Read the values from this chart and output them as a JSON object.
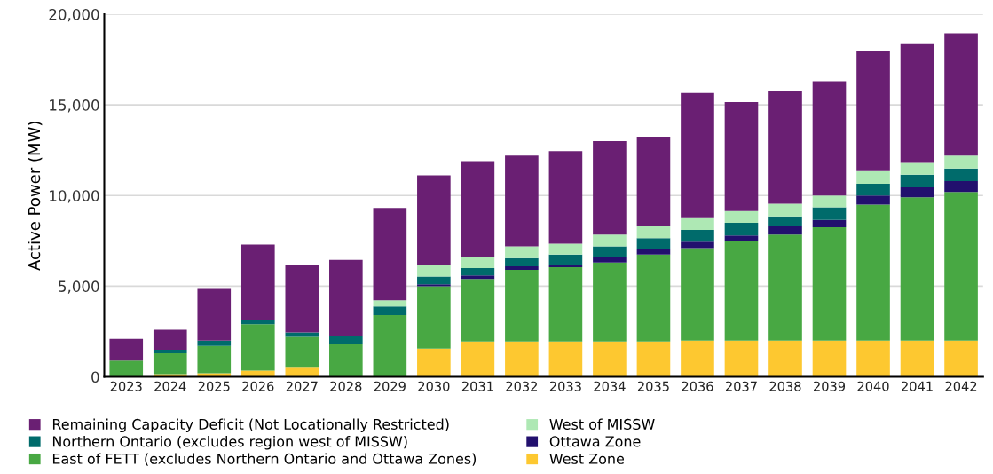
{
  "chart_data": {
    "type": "bar",
    "stacked": true,
    "ylabel": "Active Power (MW)",
    "categories": [
      "2023",
      "2024",
      "2025",
      "2026",
      "2027",
      "2028",
      "2029",
      "2030",
      "2031",
      "2032",
      "2033",
      "2034",
      "2035",
      "2036",
      "2037",
      "2038",
      "2039",
      "2040",
      "2041",
      "2042"
    ],
    "series": [
      {
        "name": "West Zone",
        "color": "#fdc830",
        "values": [
          0,
          150,
          200,
          350,
          500,
          0,
          0,
          1550,
          1950,
          1950,
          1950,
          1950,
          1950,
          2000,
          2000,
          2000,
          2000,
          2000,
          2000,
          2000
        ]
      },
      {
        "name": "East of FETT (excludes Northern Ontario and Ottawa Zones)",
        "color": "#48a843",
        "values": [
          900,
          1150,
          1500,
          2550,
          1700,
          1800,
          3400,
          3450,
          3450,
          3950,
          4100,
          4350,
          4800,
          5100,
          5500,
          5850,
          6250,
          7500,
          7900,
          8200
        ]
      },
      {
        "name": "Ottawa Zone",
        "color": "#22106e",
        "values": [
          0,
          0,
          0,
          0,
          0,
          0,
          0,
          100,
          200,
          200,
          150,
          300,
          300,
          350,
          300,
          450,
          400,
          500,
          550,
          600
        ]
      },
      {
        "name": "Northern Ontario (excludes region west of MISSW)",
        "color": "#006b6b",
        "values": [
          0,
          200,
          300,
          250,
          250,
          450,
          480,
          430,
          400,
          450,
          550,
          600,
          600,
          650,
          700,
          550,
          700,
          650,
          700,
          700
        ]
      },
      {
        "name": "West of MISSW",
        "color": "#aee8b4",
        "values": [
          0,
          0,
          0,
          0,
          0,
          0,
          340,
          630,
          600,
          650,
          600,
          650,
          650,
          650,
          650,
          700,
          650,
          700,
          650,
          700
        ]
      },
      {
        "name": "Remaining Capacity Deficit (Not Locationally Restricted)",
        "color": "#6a1f73",
        "values": [
          1200,
          1100,
          2850,
          4150,
          3700,
          4200,
          5100,
          4950,
          5300,
          5000,
          5100,
          5150,
          4950,
          6900,
          6000,
          6200,
          6300,
          6600,
          6550,
          6750
        ]
      }
    ],
    "ylim": [
      0,
      20000
    ],
    "yticks": [
      0,
      {
        "value": 5000,
        "label": "5,000"
      },
      {
        "value": 10000,
        "label": "10,000"
      },
      {
        "value": 15000,
        "label": "15,000"
      },
      {
        "value": 20000,
        "label": "20,000"
      }
    ],
    "grid": "y",
    "legend": "bottom"
  }
}
